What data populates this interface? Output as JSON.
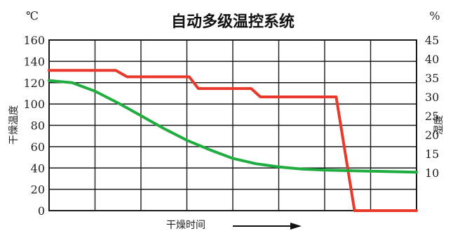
{
  "chart_data": {
    "type": "line",
    "title": "自动多级温控系统",
    "y_left": {
      "unit": "℃",
      "label": "干燥温度",
      "ylim": [
        0,
        160
      ],
      "ticks": [
        "0",
        "20",
        "40",
        "60",
        "80",
        "100",
        "120",
        "140",
        "160"
      ]
    },
    "y_right": {
      "unit": "%",
      "label": "湿度",
      "ylim": [
        0,
        45
      ],
      "ticks": [
        "10",
        "15",
        "20",
        "25",
        "30",
        "35",
        "40",
        "45"
      ],
      "tick_values": [
        10,
        15,
        20,
        25,
        30,
        35,
        40,
        45
      ]
    },
    "x_axis": {
      "label": "干燥时间",
      "xlim": [
        0,
        8
      ],
      "grid_divisions": 8
    },
    "grid": true,
    "series": [
      {
        "axis": "right",
        "color": "#e8392a",
        "points": [
          [
            0,
            37
          ],
          [
            1.45,
            37
          ],
          [
            1.7,
            35.3
          ],
          [
            3.05,
            35.3
          ],
          [
            3.25,
            32.2
          ],
          [
            4.4,
            32.2
          ],
          [
            4.6,
            30
          ],
          [
            6.25,
            30
          ],
          [
            6.65,
            0
          ],
          [
            8,
            0
          ]
        ]
      },
      {
        "axis": "left",
        "color": "#1fad3f",
        "points": [
          [
            0,
            122
          ],
          [
            0.5,
            120
          ],
          [
            1,
            112
          ],
          [
            1.5,
            101
          ],
          [
            2,
            89
          ],
          [
            2.5,
            77
          ],
          [
            3,
            66
          ],
          [
            3.5,
            57
          ],
          [
            4,
            49
          ],
          [
            4.5,
            44
          ],
          [
            5,
            41
          ],
          [
            5.5,
            39
          ],
          [
            6,
            38
          ],
          [
            7,
            37
          ],
          [
            8,
            36
          ]
        ]
      }
    ]
  }
}
